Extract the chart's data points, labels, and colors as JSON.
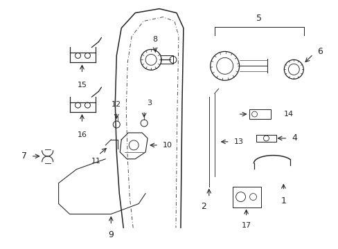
{
  "bg_color": "#ffffff",
  "line_color": "#222222",
  "figsize": [
    4.89,
    3.6
  ],
  "dpi": 100,
  "xlim": [
    0,
    489
  ],
  "ylim": [
    0,
    360
  ]
}
